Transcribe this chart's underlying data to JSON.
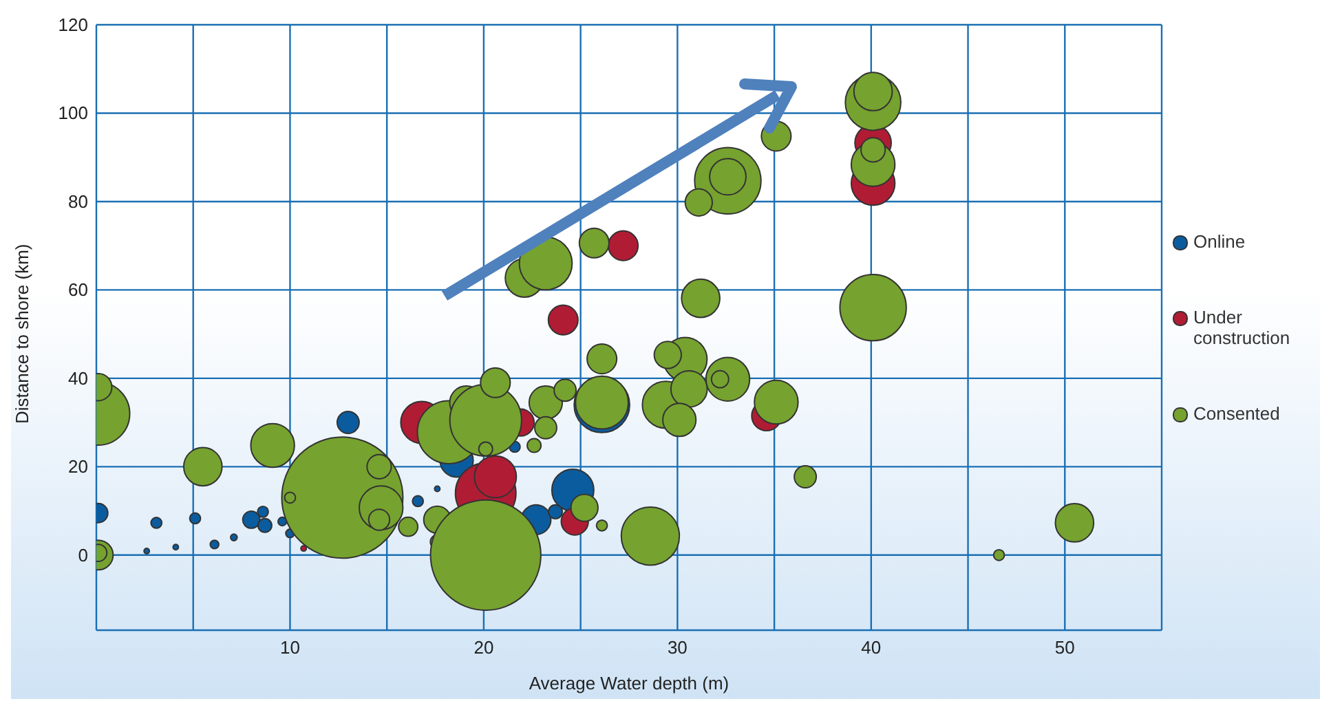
{
  "chart_data": {
    "type": "bubble",
    "xlabel": "Average Water depth (m)",
    "ylabel": "Distance to shore (km)",
    "xlim": [
      0,
      55
    ],
    "xticks": [
      {
        "value": 0,
        "label": null
      },
      {
        "value": 5,
        "label": null
      },
      10,
      {
        "value": 15,
        "label": null
      },
      20,
      {
        "value": 25,
        "label": null
      },
      30,
      {
        "value": 35,
        "label": null
      },
      40,
      {
        "value": 45,
        "label": null
      },
      50,
      {
        "value": 55,
        "label": null
      }
    ],
    "ylim": [
      -17,
      120
    ],
    "yticks": [
      0,
      20,
      40,
      60,
      80,
      100,
      120
    ],
    "grid": true,
    "legend": "right",
    "marker": "circle",
    "series": [
      {
        "name": "Online",
        "color": "#0b5c9e",
        "x": [
          0.1,
          3.1,
          5.1,
          6.1,
          4.1,
          8,
          8.6,
          8.7,
          9.6,
          10,
          13,
          16.6,
          17.6,
          18.6,
          21.6,
          22.7,
          23.7,
          24.6,
          26.1,
          2.6,
          7.1
        ],
        "values": [
          9.5,
          7.3,
          8.3,
          2.4,
          1.8,
          8,
          9.8,
          6.7,
          7.6,
          4.9,
          30,
          12.2,
          15,
          21.4,
          24.5,
          8,
          9.8,
          14.7,
          34,
          0.9,
          4
        ],
        "sizes": [
          0.025,
          0.008,
          0.008,
          0.005,
          0.002,
          0.02,
          0.008,
          0.013,
          0.005,
          0.005,
          0.033,
          0.008,
          0.002,
          0.075,
          0.008,
          0.06,
          0.013,
          0.12,
          0.21,
          0.002,
          0.003
        ]
      },
      {
        "name": "Under construction",
        "color": "#b01c34",
        "x": [
          16.8,
          21.9,
          20.1,
          20.6,
          24.7,
          10.7,
          24.1,
          27.2,
          40.1,
          40.1,
          34.6
        ],
        "values": [
          30,
          30,
          14,
          17.7,
          7.6,
          1.5,
          53.2,
          70,
          93.3,
          84.1,
          31.5
        ],
        "sizes": [
          0.12,
          0.05,
          0.25,
          0.12,
          0.05,
          0.002,
          0.06,
          0.06,
          0.09,
          0.13,
          0.06
        ]
      },
      {
        "name": "Consented",
        "color": "#76a22f",
        "x": [
          0.1,
          0.1,
          0.1,
          0.1,
          5.5,
          9.1,
          12.7,
          14.6,
          14.7,
          14.6,
          16.1,
          10,
          17.6,
          17.6,
          18.2,
          19.1,
          20.1,
          20.6,
          20.1,
          20.1,
          23.2,
          23.2,
          22.6,
          24.2,
          26.1,
          26.1,
          25.2,
          26.1,
          28.6,
          22.1,
          23.2,
          25.7,
          35.1,
          32.6,
          32.6,
          31.1,
          40.1,
          40.1,
          40.1,
          40.1,
          40.1,
          31.2,
          30.4,
          29.5,
          29.4,
          30.6,
          30.1,
          32.6,
          32.2,
          35.1,
          36.6,
          50.5,
          46.6
        ],
        "values": [
          32,
          38,
          0,
          0.5,
          20,
          24.8,
          13,
          20,
          10.7,
          8,
          6.4,
          13,
          8,
          3,
          27.8,
          34.5,
          30.5,
          39,
          24,
          0,
          34.5,
          28.8,
          24.8,
          37.3,
          44.4,
          34.5,
          10.7,
          6.7,
          4.3,
          62.7,
          66,
          70.6,
          94.8,
          84.7,
          85.6,
          79.8,
          102.4,
          104.9,
          88.4,
          91.7,
          56,
          58.1,
          44.3,
          45.3,
          34,
          37.6,
          30.6,
          39.8,
          39.8,
          34.6,
          17.7,
          7.3,
          0
        ],
        "sizes": [
          0.27,
          0.05,
          0.06,
          0.02,
          0.1,
          0.13,
          1,
          0.04,
          0.13,
          0.03,
          0.025,
          0.008,
          0.05,
          0.013,
          0.27,
          0.075,
          0.35,
          0.06,
          0.013,
          0.83,
          0.075,
          0.033,
          0.013,
          0.033,
          0.06,
          0.19,
          0.05,
          0.008,
          0.23,
          0.1,
          0.19,
          0.06,
          0.06,
          0.3,
          0.09,
          0.05,
          0.21,
          0.1,
          0.13,
          0.04,
          0.3,
          0.1,
          0.13,
          0.05,
          0.15,
          0.09,
          0.075,
          0.13,
          0.02,
          0.13,
          0.033,
          0.1,
          0.008
        ]
      }
    ]
  }
}
